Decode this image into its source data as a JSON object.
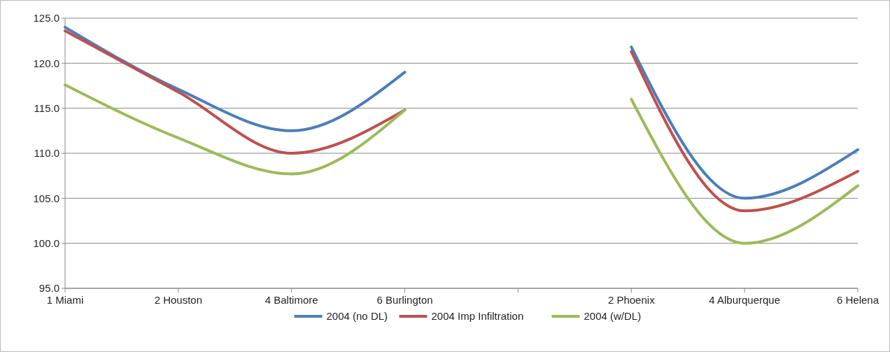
{
  "chart_data": {
    "type": "line",
    "categories": [
      "1 Miami",
      "2 Houston",
      "4 Baltimore",
      "6 Burlington",
      null,
      "2 Phoenix",
      "4 Alburquerque",
      "6 Helena"
    ],
    "series": [
      {
        "name": "2004 (no DL)",
        "color": "#4a7ebb",
        "values": [
          124.0,
          117.1,
          112.5,
          119.0,
          null,
          121.8,
          105.0,
          110.4
        ]
      },
      {
        "name": "2004 Imp Infiltration",
        "color": "#c0504d",
        "values": [
          123.6,
          116.8,
          110.0,
          114.8,
          null,
          121.3,
          103.6,
          108.0
        ]
      },
      {
        "name": "2004 (w/DL)",
        "color": "#9bbb59",
        "values": [
          117.6,
          111.7,
          107.7,
          114.8,
          null,
          116.0,
          100.0,
          106.4
        ]
      }
    ],
    "ylim": [
      95,
      125
    ],
    "yticks": [
      {
        "value": 95,
        "label": "95.0"
      },
      {
        "value": 100,
        "label": "100.0"
      },
      {
        "value": 105,
        "label": "105.0"
      },
      {
        "value": 110,
        "label": "110.0"
      },
      {
        "value": 115,
        "label": "115.0"
      },
      {
        "value": 120,
        "label": "120.0"
      },
      {
        "value": 125,
        "label": "125.0"
      }
    ],
    "grid": "y",
    "legend": "bottom",
    "marker": "none",
    "line_style": "solid"
  }
}
